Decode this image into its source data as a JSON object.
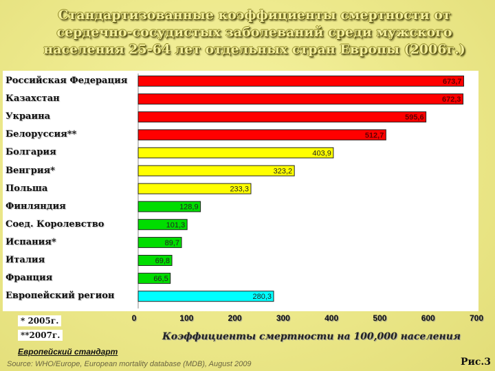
{
  "title": "Стандартизованные коэффициенты смертности от сердечно-сосудистых заболеваний среди мужского населения 25-64 лет отдельных стран Европы (2006г.)",
  "notes": {
    "note1": "* 2005г.",
    "note2": "**2007г.",
    "euro_standard": "Европейский стандарт"
  },
  "source": "Source: WHO/Europe, European mortality database (MDB), August 2009",
  "figure_label": "Рис.3",
  "colors": {
    "red": "#ff0000",
    "yellow": "#ffff00",
    "green": "#00dd00",
    "cyan": "#00ffff"
  },
  "chart_data": {
    "type": "bar",
    "orientation": "horizontal",
    "xlabel": "Коэффициенты смертности на 100,000 населения",
    "xlim": [
      0,
      700
    ],
    "xticks": [
      0,
      100,
      200,
      300,
      400,
      500,
      600,
      700
    ],
    "grid": false,
    "legend": "none",
    "categories": [
      "Российская Федерация",
      "Казахстан",
      "Украина",
      "Белоруссия**",
      "Болгария",
      "Венгрия*",
      "Польша",
      "Финляндия",
      "Соед. Королевство",
      "Испания*",
      "Италия",
      "Франция",
      "Европейский регион"
    ],
    "values": [
      673.7,
      672.3,
      595.6,
      512.7,
      403.9,
      323.2,
      233.3,
      128.9,
      101.3,
      89.7,
      69.8,
      66.5,
      280.3
    ],
    "value_labels": [
      "673,7",
      "672,3",
      "595,6",
      "512,7",
      "403,9",
      "323,2",
      "233,3",
      "128,9",
      "101,3",
      "89,7",
      "69,8",
      "66,5",
      "280,3"
    ],
    "bar_colors": [
      "red",
      "red",
      "red",
      "red",
      "yellow",
      "yellow",
      "yellow",
      "green",
      "green",
      "green",
      "green",
      "green",
      "cyan"
    ]
  }
}
